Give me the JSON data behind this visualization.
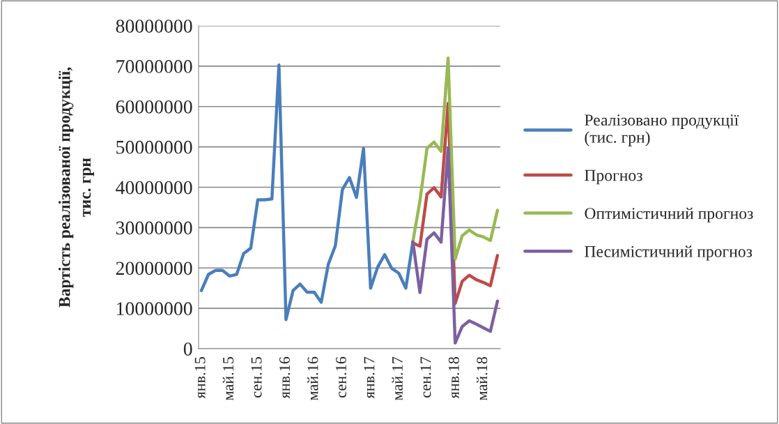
{
  "chart_data": {
    "type": "line",
    "ylabel": "Вартість реалізованої продукції,\nтис. грн",
    "categories": [
      "янв.15",
      null,
      null,
      null,
      "май.15",
      null,
      null,
      null,
      "сен.15",
      null,
      null,
      null,
      "янв.16",
      null,
      null,
      null,
      "май.16",
      null,
      null,
      null,
      "сен.16",
      null,
      null,
      null,
      "янв.17",
      null,
      null,
      null,
      "май.17",
      null,
      null,
      null,
      "сен.17",
      null,
      null,
      null,
      "янв.18",
      null,
      null,
      null,
      "май.18",
      null,
      null
    ],
    "series": [
      {
        "name": "Реалізовано продукції\n(тис. грн)",
        "color": "#4a7ebb",
        "values": [
          14400000,
          18400000,
          19400000,
          19400000,
          18000000,
          18400000,
          23600000,
          24900000,
          36900000,
          36900000,
          37100000,
          70300000,
          7200000,
          14400000,
          16000000,
          14000000,
          14000000,
          11500000,
          20900000,
          25500000,
          39400000,
          42400000,
          37500000,
          49600000,
          15000000,
          20200000,
          23300000,
          19900000,
          18700000,
          15000000,
          26500000,
          null,
          null,
          null,
          null,
          null,
          null,
          null,
          null,
          null,
          null,
          null,
          null
        ]
      },
      {
        "name": "Прогноз",
        "color": "#be4b48",
        "values": [
          null,
          null,
          null,
          null,
          null,
          null,
          null,
          null,
          null,
          null,
          null,
          null,
          null,
          null,
          null,
          null,
          null,
          null,
          null,
          null,
          null,
          null,
          null,
          null,
          null,
          null,
          null,
          null,
          null,
          null,
          26200000,
          25400000,
          38300000,
          39900000,
          37600000,
          60800000,
          11200000,
          16700000,
          18200000,
          17100000,
          16400000,
          15600000,
          23100000
        ]
      },
      {
        "name": "Оптимістичний прогноз",
        "color": "#98b954",
        "values": [
          null,
          null,
          null,
          null,
          null,
          null,
          null,
          null,
          null,
          null,
          null,
          null,
          null,
          null,
          null,
          null,
          null,
          null,
          null,
          null,
          null,
          null,
          null,
          null,
          null,
          null,
          null,
          null,
          null,
          null,
          26500000,
          36600000,
          49600000,
          51200000,
          48900000,
          72000000,
          22200000,
          28000000,
          29400000,
          28200000,
          27700000,
          26800000,
          34300000
        ]
      },
      {
        "name": "Песимістичний прогноз",
        "color": "#7d60a0",
        "values": [
          null,
          null,
          null,
          null,
          null,
          null,
          null,
          null,
          null,
          null,
          null,
          null,
          null,
          null,
          null,
          null,
          null,
          null,
          null,
          null,
          null,
          null,
          null,
          null,
          null,
          null,
          null,
          null,
          null,
          null,
          26500000,
          13900000,
          27100000,
          28700000,
          26400000,
          49700000,
          1400000,
          5500000,
          6900000,
          6100000,
          5200000,
          4300000,
          11800000
        ]
      }
    ],
    "ylim": [
      0,
      80000000
    ],
    "yticks": [
      0,
      10000000,
      20000000,
      30000000,
      40000000,
      50000000,
      60000000,
      70000000,
      80000000
    ],
    "grid": "y",
    "legend": "right"
  }
}
